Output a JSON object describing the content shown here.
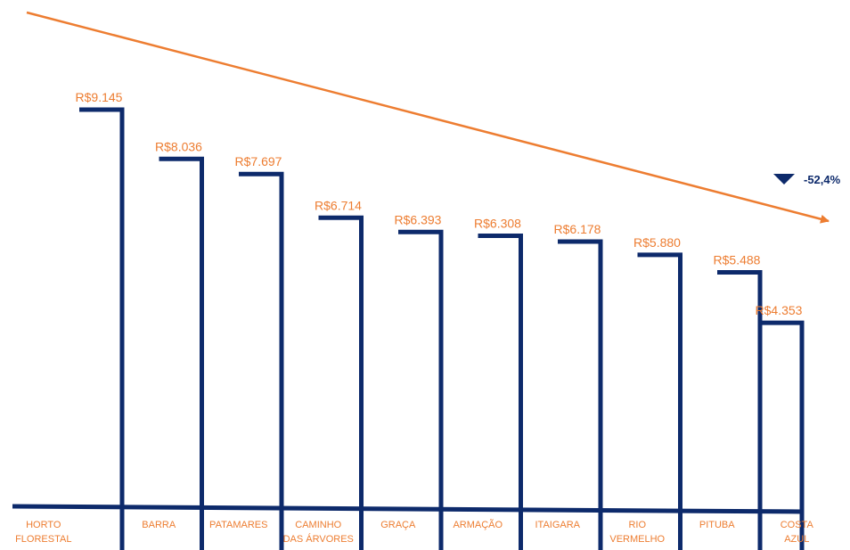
{
  "chart_data": {
    "type": "bar",
    "title": "",
    "xlabel": "",
    "ylabel": "",
    "categories": [
      [
        "HORTO",
        "FLORESTAL"
      ],
      [
        "BARRA"
      ],
      [
        "PATAMARES"
      ],
      [
        "CAMINHO",
        "DAS ÁRVORES"
      ],
      [
        "GRAÇA"
      ],
      [
        "ARMAÇÃO"
      ],
      [
        "ITAIGARA"
      ],
      [
        "RIO",
        "VERMELHO"
      ],
      [
        "PITUBA"
      ],
      [
        "COSTA",
        "AZUL"
      ]
    ],
    "values": [
      9145,
      8036,
      7697,
      6714,
      6393,
      6308,
      6178,
      5880,
      5488,
      4353
    ],
    "value_labels": [
      "R$9.145",
      "R$8.036",
      "R$7.697",
      "R$6.714",
      "R$6.393",
      "R$6.308",
      "R$6.178",
      "R$5.880",
      "R$5.488",
      "R$4.353"
    ],
    "ylim": [
      0,
      10000
    ],
    "grid": false,
    "legend": "none",
    "trend": {
      "direction": "down",
      "change_label": "-52,4%"
    }
  },
  "colors": {
    "bar": "#0d2a6b",
    "accent": "#ed7d31",
    "category_text": "#ed7d31",
    "badge_text": "#0d2a6b"
  }
}
